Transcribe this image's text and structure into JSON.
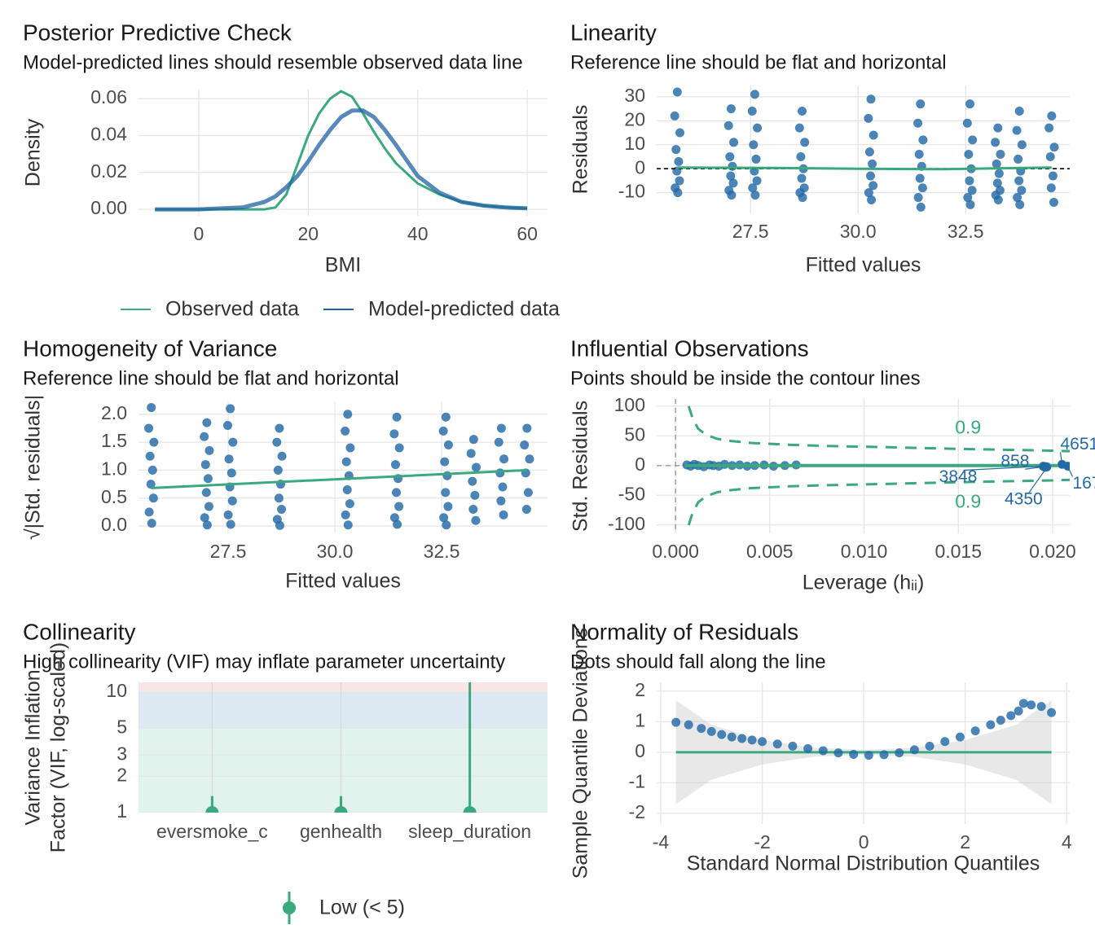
{
  "chart_data": [
    {
      "type": "density",
      "title": "Posterior Predictive Check",
      "subtitle": "Model-predicted lines should resemble observed data line",
      "xlabel": "BMI",
      "ylabel": "Density",
      "grid": true,
      "x": [
        -8,
        0,
        8,
        12,
        14,
        16,
        18,
        20,
        22,
        24,
        26,
        28,
        30,
        32,
        34,
        36,
        40,
        44,
        48,
        52,
        56,
        60
      ],
      "series": [
        {
          "name": "Observed data",
          "color": "#3aaa7e",
          "values": [
            0,
            0,
            0,
            0,
            0.001,
            0.008,
            0.024,
            0.04,
            0.052,
            0.06,
            0.064,
            0.061,
            0.052,
            0.042,
            0.033,
            0.025,
            0.014,
            0.008,
            0.004,
            0.002,
            0.001,
            0.0005
          ]
        },
        {
          "name": "Model-predicted data",
          "color": "#1f62a3",
          "values": [
            0,
            0,
            0.001,
            0.004,
            0.007,
            0.012,
            0.018,
            0.026,
            0.035,
            0.043,
            0.05,
            0.0535,
            0.0535,
            0.05,
            0.043,
            0.035,
            0.018,
            0.009,
            0.004,
            0.002,
            0.001,
            0.0005
          ]
        }
      ],
      "xlim": [
        -11,
        63.7
      ],
      "xticks": [
        0,
        20,
        40,
        60
      ],
      "ylim": [
        -0.0035,
        0.0649
      ],
      "yticks": [
        {
          "value": 0,
          "label": "0.00"
        },
        {
          "value": 0.02,
          "label": "0.02"
        },
        {
          "value": 0.04,
          "label": "0.04"
        },
        {
          "value": 0.06,
          "label": "0.06"
        }
      ]
    },
    {
      "type": "scatter",
      "title": "Linearity",
      "subtitle": "Reference line should be flat and horizontal",
      "xlabel": "Fitted values",
      "ylabel": "Residuals",
      "grid": true,
      "color": "#2369a6",
      "reference_y": 0,
      "x": [
        25.8,
        25.74,
        25.86,
        25.77,
        25.83,
        25.79,
        25.85,
        25.75,
        25.81,
        27.05,
        26.99,
        27.11,
        27.02,
        27.08,
        27.04,
        27.1,
        27.0,
        27.06,
        27.6,
        27.54,
        27.66,
        27.57,
        27.63,
        27.59,
        27.65,
        27.55,
        27.61,
        28.7,
        28.64,
        28.76,
        28.67,
        28.73,
        28.69,
        28.75,
        28.65,
        28.71,
        30.3,
        30.24,
        30.36,
        30.27,
        30.33,
        30.29,
        30.35,
        30.25,
        30.31,
        31.45,
        31.39,
        31.51,
        31.42,
        31.48,
        31.44,
        31.5,
        31.4,
        31.46,
        32.6,
        32.54,
        32.66,
        32.57,
        32.63,
        32.59,
        32.65,
        32.55,
        32.61,
        33.25,
        33.19,
        33.31,
        33.22,
        33.28,
        33.24,
        33.3,
        33.2,
        33.26,
        33.75,
        33.69,
        33.81,
        33.72,
        33.78,
        33.74,
        33.8,
        33.7,
        33.76,
        34.5,
        34.44,
        34.56,
        34.47,
        34.53,
        34.49,
        34.55
      ],
      "values": [
        32,
        22,
        15,
        8,
        3,
        -1,
        -5,
        -8,
        -10,
        25,
        18,
        11,
        5,
        1,
        -3,
        -6,
        -9,
        -11,
        31,
        24,
        17,
        10,
        4,
        -1,
        -5,
        -8,
        -11,
        24,
        17,
        11,
        5,
        0,
        -4,
        -8,
        -10,
        -12,
        29,
        21,
        14,
        7,
        2,
        -3,
        -7,
        -10,
        -13,
        27,
        19,
        12,
        6,
        1,
        -4,
        -8,
        -12,
        -16,
        27,
        19,
        12,
        6,
        0,
        -5,
        -9,
        -12,
        -15,
        17,
        11,
        6,
        2,
        -2,
        -6,
        -9,
        -11,
        -13,
        24,
        16,
        10,
        4,
        -1,
        -5,
        -9,
        -12,
        -15,
        22,
        17,
        9,
        5,
        -3,
        -8,
        -14
      ],
      "smooth": {
        "color": "#3aaa7e",
        "x": [
          25.8,
          28,
          30,
          32,
          34.5
        ],
        "values": [
          0.5,
          0.3,
          0,
          -0.2,
          0.5
        ]
      },
      "xlim": [
        25.32,
        34.92
      ],
      "xticks": [
        27.5,
        {
          "value": 30,
          "label": "30.0"
        },
        32.5
      ],
      "ylim": [
        -18.6,
        34.7
      ],
      "yticks": [
        -10,
        0,
        10,
        20,
        30
      ]
    },
    {
      "type": "scatter",
      "title": "Homogeneity of Variance",
      "subtitle": "Reference line should be flat and horizontal",
      "xlabel": "Fitted values",
      "ylabel": "√|Std. residuals|",
      "grid": true,
      "color": "#2369a6",
      "x": [
        25.7,
        25.64,
        25.76,
        25.67,
        25.73,
        25.69,
        25.75,
        25.65,
        25.71,
        27.0,
        26.94,
        27.06,
        26.97,
        27.03,
        26.99,
        27.05,
        26.95,
        27.01,
        27.55,
        27.49,
        27.61,
        27.52,
        27.58,
        27.54,
        27.6,
        27.5,
        27.56,
        28.7,
        28.64,
        28.76,
        28.67,
        28.73,
        28.69,
        28.75,
        28.65,
        28.71,
        30.3,
        30.24,
        30.36,
        30.27,
        30.33,
        30.29,
        30.35,
        30.25,
        30.31,
        31.45,
        31.39,
        31.51,
        31.42,
        31.48,
        31.44,
        31.5,
        31.4,
        31.46,
        32.6,
        32.54,
        32.66,
        32.57,
        32.63,
        32.59,
        32.65,
        32.55,
        32.61,
        33.25,
        33.19,
        33.31,
        33.22,
        33.28,
        33.24,
        33.3,
        33.9,
        33.84,
        33.96,
        33.87,
        33.93,
        33.89,
        33.95,
        34.5,
        34.44,
        34.56,
        34.47,
        34.53,
        34.49
      ],
      "values": [
        2.12,
        1.75,
        1.5,
        1.25,
        1.0,
        0.75,
        0.5,
        0.25,
        0.05,
        1.85,
        1.6,
        1.35,
        1.1,
        0.85,
        0.6,
        0.35,
        0.15,
        0.02,
        2.1,
        1.8,
        1.5,
        1.2,
        0.95,
        0.7,
        0.45,
        0.2,
        0.03,
        1.75,
        1.5,
        1.25,
        1.0,
        0.75,
        0.5,
        0.3,
        0.12,
        0.01,
        2.0,
        1.7,
        1.4,
        1.15,
        0.9,
        0.65,
        0.4,
        0.2,
        0.02,
        1.95,
        1.65,
        1.4,
        1.1,
        0.85,
        0.6,
        0.35,
        0.15,
        0.03,
        1.95,
        1.7,
        1.45,
        1.15,
        0.9,
        0.6,
        0.35,
        0.15,
        0.02,
        1.55,
        1.3,
        1.05,
        0.8,
        0.55,
        0.3,
        0.1,
        1.75,
        1.5,
        1.2,
        0.95,
        0.7,
        0.45,
        0.2,
        1.75,
        1.45,
        1.2,
        0.95,
        0.6,
        0.3
      ],
      "smooth": {
        "color": "#3aaa7e",
        "x": [
          25.7,
          34.5
        ],
        "values": [
          0.68,
          1.0
        ]
      },
      "xlim": [
        25.4,
        34.98
      ],
      "xticks": [
        27.5,
        {
          "value": 30,
          "label": "30.0"
        },
        32.5
      ],
      "ylim": [
        -0.13,
        2.23
      ],
      "yticks": [
        {
          "value": 0,
          "label": "0.0"
        },
        {
          "value": 0.5,
          "label": "0.5"
        },
        {
          "value": 1,
          "label": "1.0"
        },
        {
          "value": 1.5,
          "label": "1.5"
        },
        {
          "value": 2,
          "label": "2.0"
        }
      ]
    },
    {
      "type": "leverage",
      "title": "Influential Observations",
      "subtitle": "Points should be inside the contour lines",
      "xlabel": "Leverage (hᵢᵢ)",
      "ylabel": "Std. Residuals",
      "grid": true,
      "color": "#2369a6",
      "reference_x": 0,
      "reference_y": 0,
      "x": [
        0.0006,
        0.0008,
        0.001,
        0.0012,
        0.0015,
        0.0018,
        0.002,
        0.0023,
        0.0026,
        0.003,
        0.0034,
        0.0038,
        0.0042,
        0.0047,
        0.0052,
        0.0058,
        0.0064,
        0.0195,
        0.0196,
        0.0197,
        0.0205,
        0.0208
      ],
      "values": [
        1,
        -1,
        2,
        0,
        -2,
        1,
        0,
        -1,
        2,
        0,
        1,
        -1,
        0,
        1,
        -1,
        0,
        1,
        -1,
        -3,
        -2,
        2,
        -1
      ],
      "smooth": {
        "color": "#3aaa7e",
        "x": [
          0.0005,
          0.021
        ],
        "values": [
          0,
          0
        ]
      },
      "contours": [
        {
          "label": "0.9",
          "color": "#3aaa7e",
          "x": [
            0.0007,
            0.0009,
            0.0012,
            0.0016,
            0.0022,
            0.003,
            0.004,
            0.006,
            0.008,
            0.011,
            0.015,
            0.02,
            0.021
          ],
          "values": [
            100,
            80,
            62,
            52,
            45,
            41,
            38,
            35,
            33,
            31,
            28,
            25,
            24
          ]
        },
        {
          "label": "0.9",
          "color": "#3aaa7e",
          "x": [
            0.0007,
            0.0009,
            0.0012,
            0.0016,
            0.0022,
            0.003,
            0.004,
            0.006,
            0.008,
            0.011,
            0.015,
            0.02,
            0.021
          ],
          "values": [
            -100,
            -80,
            -62,
            -52,
            -45,
            -41,
            -38,
            -35,
            -33,
            -31,
            -28,
            -25,
            -24
          ]
        }
      ],
      "labeled_points": [
        {
          "label": "4651",
          "x": 0.0205,
          "y": 2
        },
        {
          "label": "858",
          "x": 0.0195,
          "y": -2
        },
        {
          "label": "3848",
          "x": 0.0196,
          "y": -1
        },
        {
          "label": "4350",
          "x": 0.0197,
          "y": -3
        },
        {
          "label": "167",
          "x": 0.0208,
          "y": -1
        }
      ],
      "xlim": [
        -0.001,
        0.02091
      ],
      "xticks": [
        {
          "value": 0,
          "label": "0.000"
        },
        0.005,
        {
          "value": 0.01,
          "label": "0.010"
        },
        0.015,
        {
          "value": 0.02,
          "label": "0.020"
        }
      ],
      "ylim": [
        -114,
        112
      ],
      "yticks": [
        -100,
        -50,
        0,
        50,
        100
      ]
    },
    {
      "type": "vif",
      "title": "Collinearity",
      "subtitle": "High collinearity (VIF) may inflate parameter uncertainty",
      "ylabel": [
        "Variance Inflation",
        "Factor (VIF, log-scaled)"
      ],
      "grid": true,
      "log_y": true,
      "color": "#3aaa7e",
      "categories": [
        "eversmoke_c",
        "genhealth",
        "sleep_duration"
      ],
      "values": [
        1.0,
        1.0,
        1.0
      ],
      "ci_high": [
        1.37,
        1.37,
        15
      ],
      "bands": [
        {
          "from": 1,
          "to": 5,
          "color": "#3aaa7e"
        },
        {
          "from": 5,
          "to": 10,
          "color": "#1f6fb0"
        },
        {
          "from": 10,
          "to": 100,
          "color": "#e05050"
        }
      ],
      "legend": "Low (< 5)",
      "ylim": [
        1,
        12
      ],
      "yticks": [
        1,
        2,
        3,
        5,
        10
      ]
    },
    {
      "type": "qq",
      "title": "Normality of Residuals",
      "subtitle": "Dots should fall along the line",
      "xlabel": "Standard Normal Distribution Quantiles",
      "ylabel": "Sample Quantile Deviations",
      "grid": true,
      "color": "#2369a6",
      "x": [
        -3.7,
        -3.45,
        -3.2,
        -3.0,
        -2.8,
        -2.6,
        -2.4,
        -2.2,
        -2.0,
        -1.7,
        -1.4,
        -1.1,
        -0.8,
        -0.5,
        -0.2,
        0.1,
        0.4,
        0.7,
        1.0,
        1.3,
        1.6,
        1.9,
        2.2,
        2.5,
        2.7,
        2.9,
        3.05,
        3.15,
        3.3,
        3.5,
        3.7
      ],
      "values": [
        0.98,
        0.9,
        0.78,
        0.68,
        0.58,
        0.5,
        0.45,
        0.4,
        0.35,
        0.27,
        0.2,
        0.12,
        0.05,
        -0.02,
        -0.07,
        -0.1,
        -0.08,
        -0.02,
        0.08,
        0.2,
        0.35,
        0.5,
        0.7,
        0.9,
        1.05,
        1.2,
        1.35,
        1.6,
        1.55,
        1.5,
        1.3
      ],
      "reference": {
        "color": "#3aaa7e",
        "x": [
          -3.7,
          3.7
        ],
        "values": [
          0,
          0
        ]
      },
      "band": {
        "x": [
          -3.7,
          -3,
          -2,
          -1,
          0,
          1,
          2,
          3,
          3.7
        ],
        "low": [
          -1.7,
          -0.9,
          -0.4,
          -0.15,
          -0.08,
          -0.15,
          -0.4,
          -0.9,
          -1.7
        ],
        "high": [
          1.7,
          0.9,
          0.4,
          0.15,
          0.08,
          0.15,
          0.4,
          0.9,
          1.7
        ]
      },
      "xlim": [
        -4.08,
        4.06
      ],
      "xticks": [
        -4,
        -2,
        0,
        2,
        4
      ],
      "ylim": [
        -2.35,
        2.29
      ],
      "yticks": [
        -2,
        -1,
        0,
        1,
        2
      ]
    }
  ]
}
